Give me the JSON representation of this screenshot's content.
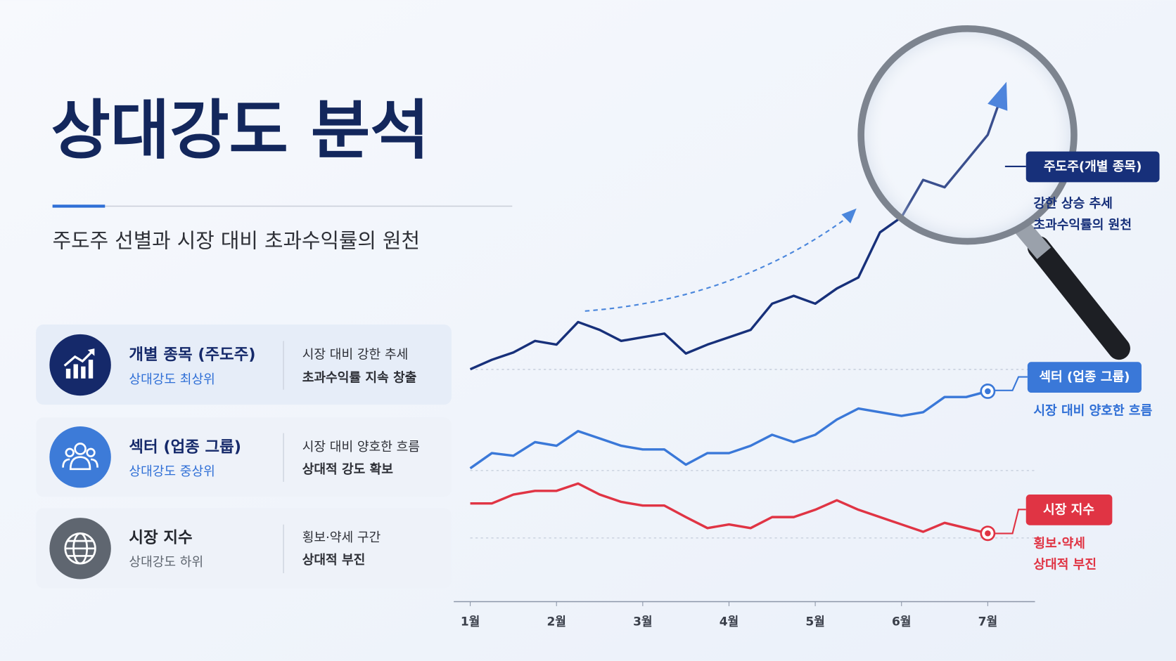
{
  "header": {
    "title": "상대강도 분석",
    "subtitle": "주도주 선별과 시장 대비 초과수익률의 원천"
  },
  "cards": [
    {
      "title": "개별 종목 (주도주)",
      "subtitle": "상대강도 최상위",
      "desc": [
        "시장 대비 강한 추세",
        "초과수익률 지속 창출"
      ]
    },
    {
      "title": "섹터 (업종 그룹)",
      "subtitle": "상대강도 중상위",
      "desc": [
        "시장 대비 양호한 흐름",
        "상대적 강도 확보"
      ]
    },
    {
      "title": "시장 지수",
      "subtitle": "상대강도 하위",
      "desc": [
        "횡보·약세 구간",
        "상대적 부진"
      ]
    }
  ],
  "callouts": [
    {
      "desc": [
        "강한 상승 추세",
        "초과수익률의 원천"
      ]
    },
    {
      "desc": [
        "시장 대비 양호한 흐름"
      ]
    },
    {
      "desc": [
        "횡보·약세",
        "상대적 부진"
      ]
    }
  ],
  "chart_data": {
    "type": "line",
    "x": [
      1,
      1.25,
      1.5,
      1.75,
      2,
      2.25,
      2.5,
      2.75,
      3,
      3.25,
      3.5,
      3.75,
      4,
      4.25,
      4.5,
      4.75,
      5,
      5.25,
      5.5,
      5.75,
      6,
      6.25,
      6.5,
      6.75,
      7,
      7.2
    ],
    "xlim": [
      0.8,
      7.55
    ],
    "xticks": [
      {
        "value": 1,
        "label": "1월"
      },
      {
        "value": 2,
        "label": "2월"
      },
      {
        "value": 3,
        "label": "3월"
      },
      {
        "value": 4,
        "label": "4월"
      },
      {
        "value": 5,
        "label": "5월"
      },
      {
        "value": 6,
        "label": "6월"
      },
      {
        "value": 7,
        "label": "7월"
      }
    ],
    "ylim": [
      0,
      100
    ],
    "series": [
      {
        "name": "주도주(개별 종목)",
        "color": "#17307a",
        "values": [
          43.9,
          45.7,
          47.1,
          49.3,
          48.6,
          52.9,
          51.4,
          49.3,
          50,
          50.7,
          46.9,
          48.6,
          50,
          51.4,
          56.4,
          57.9,
          56.4,
          59.3,
          61.4,
          70,
          72.9,
          80,
          78.6,
          83.6,
          88.6,
          97.9
        ]
      },
      {
        "name": "섹터 (업종 그룹)",
        "color": "#3a78d8",
        "values": [
          25,
          27.9,
          27.4,
          30,
          29.3,
          32.1,
          30.7,
          29.3,
          28.6,
          28.6,
          25.7,
          27.9,
          27.9,
          29.3,
          31.4,
          30,
          31.4,
          34.3,
          36.4,
          35.7,
          35,
          35.7,
          38.6,
          38.6,
          39.7,
          null
        ]
      },
      {
        "name": "시장 지수",
        "color": "#e03444",
        "values": [
          18.3,
          18.3,
          20,
          20.7,
          20.7,
          22.1,
          20,
          18.6,
          17.9,
          17.9,
          15.7,
          13.6,
          14.3,
          13.6,
          15.7,
          15.7,
          17.1,
          18.9,
          17.1,
          15.7,
          14.3,
          12.9,
          14.6,
          13.6,
          12.6,
          null
        ]
      }
    ]
  }
}
